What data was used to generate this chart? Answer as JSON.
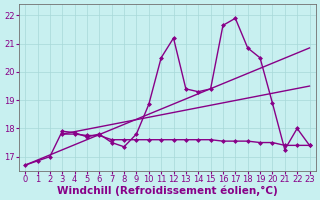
{
  "bg_color": "#c8f0f0",
  "grid_color": "#a8d8d8",
  "line_color": "#880088",
  "xmin": -0.5,
  "xmax": 23.5,
  "ymin": 16.5,
  "ymax": 22.4,
  "yticks": [
    17,
    18,
    19,
    20,
    21,
    22
  ],
  "xticks": [
    0,
    1,
    2,
    3,
    4,
    5,
    6,
    7,
    8,
    9,
    10,
    11,
    12,
    13,
    14,
    15,
    16,
    17,
    18,
    19,
    20,
    21,
    22,
    23
  ],
  "xlabel": "Windchill (Refroidissement éolien,°C)",
  "xlabel_fontsize": 7.5,
  "tick_fontsize": 6,
  "linewidth": 1.0,
  "markersize": 2.5,
  "line1_x": [
    0,
    1,
    2,
    3,
    4,
    5,
    6,
    7,
    8,
    9,
    10,
    11,
    12,
    13,
    14,
    15,
    16,
    17,
    18,
    19,
    20,
    21,
    22,
    23
  ],
  "line1_y": [
    16.7,
    16.85,
    17.0,
    17.9,
    17.85,
    17.7,
    17.8,
    17.5,
    17.35,
    17.8,
    18.85,
    20.5,
    21.2,
    19.4,
    19.3,
    19.4,
    21.65,
    21.9,
    20.85,
    20.5,
    18.9,
    17.25,
    18.0,
    17.4
  ],
  "flat_x": [
    3,
    4,
    5,
    6,
    7,
    8,
    9,
    10,
    11,
    12,
    13,
    14,
    15,
    16,
    17,
    18,
    19,
    20,
    21,
    22,
    23
  ],
  "flat_y": [
    17.8,
    17.8,
    17.75,
    17.75,
    17.6,
    17.6,
    17.6,
    17.6,
    17.6,
    17.6,
    17.6,
    17.6,
    17.6,
    17.55,
    17.55,
    17.55,
    17.5,
    17.5,
    17.4,
    17.4,
    17.4
  ],
  "trend1_x": [
    0,
    23
  ],
  "trend1_y": [
    16.7,
    20.85
  ],
  "trend2_x": [
    3,
    23
  ],
  "trend2_y": [
    17.8,
    19.5
  ]
}
